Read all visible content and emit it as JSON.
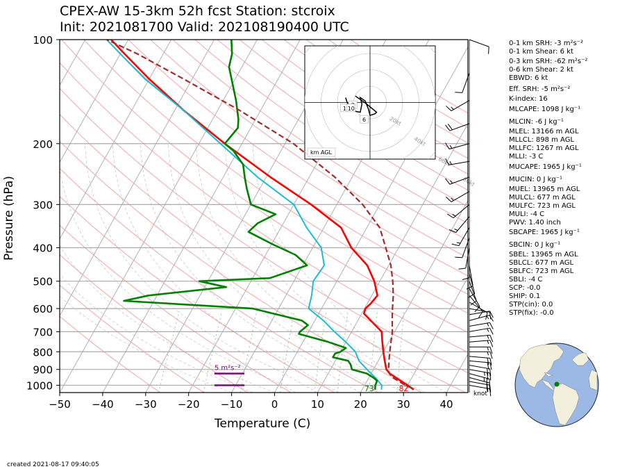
{
  "title_line1": "CPEX-AW 15-3km  52h fcst  Station: stcroix",
  "title_line2": "Init: 2021081700  Valid: 202108190400 UTC",
  "created": "created 2021-08-17 09:40:05",
  "chart_data": {
    "type": "line",
    "subtype": "skew-T log-p",
    "xlabel": "Temperature (C)",
    "ylabel": "Pressure (hPa)",
    "xlim": [
      -50,
      45
    ],
    "ylim": [
      1050,
      100
    ],
    "y_scale": "log",
    "x_ticks": [
      -50,
      -40,
      -30,
      -20,
      -10,
      0,
      10,
      20,
      30,
      40
    ],
    "x_tick_labels": [
      "−50",
      "−40",
      "−30",
      "−20",
      "−10",
      "0",
      "10",
      "20",
      "30",
      "40"
    ],
    "y_ticks": [
      100,
      200,
      300,
      400,
      500,
      600,
      700,
      800,
      900,
      1000
    ],
    "grid": true,
    "wind_unit_label": "knot",
    "surface_labels": {
      "dewpoint": "73",
      "temperature": "82"
    },
    "srh_label": "5 m²s⁻²",
    "colors": {
      "temperature": "#ff0000",
      "dewpoint": "#008000",
      "wetbulb": "#17becf",
      "parcel": "#a52a2a",
      "srh_layer": "#800080",
      "dry_adiabats": "#f4a6a6",
      "isotherms": "#b0b0b0",
      "mixing_ratio": "#8fcf8f"
    },
    "series": [
      {
        "key": "temperature",
        "points": [
          [
            1030,
            32
          ],
          [
            1000,
            30
          ],
          [
            960,
            27
          ],
          [
            925,
            24.3
          ],
          [
            900,
            23
          ],
          [
            850,
            21.5
          ],
          [
            800,
            20
          ],
          [
            750,
            18.5
          ],
          [
            700,
            17
          ],
          [
            650,
            13
          ],
          [
            620,
            10.5
          ],
          [
            600,
            10.2
          ],
          [
            580,
            10.8
          ],
          [
            550,
            11.3
          ],
          [
            500,
            8.7
          ],
          [
            450,
            5
          ],
          [
            400,
            -1
          ],
          [
            350,
            -6
          ],
          [
            300,
            -16
          ],
          [
            250,
            -29
          ],
          [
            200,
            -44
          ],
          [
            160,
            -58
          ],
          [
            130,
            -70
          ],
          [
            110,
            -79
          ],
          [
            100,
            -84
          ]
        ]
      },
      {
        "key": "wetbulb",
        "points": [
          [
            1030,
            24.5
          ],
          [
            1000,
            24
          ],
          [
            960,
            22
          ],
          [
            925,
            20
          ],
          [
            900,
            18.5
          ],
          [
            850,
            15.5
          ],
          [
            800,
            13.5
          ],
          [
            750,
            10
          ],
          [
            700,
            6
          ],
          [
            650,
            2
          ],
          [
            600,
            -3
          ],
          [
            550,
            -4
          ],
          [
            500,
            -5.5
          ],
          [
            450,
            -5
          ],
          [
            400,
            -8
          ],
          [
            350,
            -14
          ],
          [
            300,
            -20
          ],
          [
            250,
            -32
          ],
          [
            200,
            -45
          ],
          [
            160,
            -58
          ],
          [
            130,
            -71
          ],
          [
            110,
            -80
          ],
          [
            100,
            -85
          ]
        ]
      },
      {
        "key": "dewpoint",
        "points": [
          [
            1030,
            23
          ],
          [
            1000,
            22.5
          ],
          [
            970,
            22.3
          ],
          [
            950,
            21
          ],
          [
            925,
            19
          ],
          [
            900,
            15
          ],
          [
            870,
            14
          ],
          [
            850,
            13
          ],
          [
            830,
            9
          ],
          [
            810,
            9
          ],
          [
            800,
            10
          ],
          [
            780,
            10.8
          ],
          [
            750,
            6
          ],
          [
            710,
            -2
          ],
          [
            700,
            -2
          ],
          [
            670,
            -1
          ],
          [
            650,
            -3
          ],
          [
            600,
            -16
          ],
          [
            570,
            -47
          ],
          [
            550,
            -42
          ],
          [
            520,
            -25
          ],
          [
            500,
            -32
          ],
          [
            490,
            -16
          ],
          [
            450,
            -9
          ],
          [
            420,
            -13
          ],
          [
            390,
            -20
          ],
          [
            360,
            -27
          ],
          [
            340,
            -26
          ],
          [
            320,
            -23
          ],
          [
            300,
            -30
          ],
          [
            270,
            -33
          ],
          [
            250,
            -35
          ],
          [
            230,
            -37
          ],
          [
            210,
            -41
          ],
          [
            200,
            -44
          ],
          [
            180,
            -43
          ],
          [
            170,
            -44
          ],
          [
            150,
            -47
          ],
          [
            120,
            -53
          ],
          [
            110,
            -54
          ],
          [
            100,
            -56
          ]
        ]
      },
      {
        "key": "parcel",
        "points": [
          [
            1020,
            31.5
          ],
          [
            1000,
            29.5
          ],
          [
            950,
            25.5
          ],
          [
            920,
            24
          ],
          [
            900,
            23.5
          ],
          [
            850,
            22.5
          ],
          [
            800,
            21.5
          ],
          [
            750,
            20.5
          ],
          [
            700,
            19.5
          ],
          [
            650,
            18
          ],
          [
            600,
            16.5
          ],
          [
            550,
            15
          ],
          [
            500,
            13
          ],
          [
            450,
            10.5
          ],
          [
            400,
            7
          ],
          [
            350,
            3
          ],
          [
            300,
            -4
          ],
          [
            250,
            -14
          ],
          [
            200,
            -28
          ],
          [
            160,
            -45
          ],
          [
            130,
            -62
          ],
          [
            110,
            -76
          ],
          [
            100,
            -85
          ]
        ]
      }
    ],
    "srh_layers": [
      {
        "p_bottom": 1000,
        "p_top": 1000,
        "t_start": -14,
        "t_end": -7
      },
      {
        "p_bottom": 925,
        "p_top": 925,
        "t_start": -14,
        "t_end": -7
      }
    ],
    "hodograph": {
      "label": "km AGL",
      "ring_labels": [
        "20kt",
        "40kt",
        "60kt",
        "80kt"
      ],
      "height_labels": [
        "1",
        "3",
        "6",
        "10"
      ],
      "xlim": [
        -40,
        40
      ],
      "ylim": [
        -35,
        35
      ],
      "ring_step_kt": 10,
      "ring_count": 9,
      "trace": [
        [
          -15,
          3
        ],
        [
          -14,
          0
        ],
        [
          -13,
          -2
        ],
        [
          -12,
          -5
        ],
        [
          -6,
          -6
        ],
        [
          -5,
          -1
        ],
        [
          -6,
          3
        ],
        [
          -3,
          1
        ],
        [
          -1,
          -4
        ],
        [
          0,
          -8
        ],
        [
          3,
          -7
        ],
        [
          4,
          -6
        ],
        [
          -2,
          -1
        ],
        [
          -9,
          4
        ]
      ],
      "label_points": [
        [
          -16,
          -4
        ],
        [
          -11,
          -2
        ],
        [
          -4,
          -11
        ],
        [
          -12,
          -4
        ]
      ]
    },
    "wind_barbs": {
      "pressures": [
        1000,
        975,
        950,
        925,
        900,
        875,
        850,
        825,
        800,
        775,
        750,
        725,
        700,
        675,
        650,
        625,
        600,
        575,
        550,
        525,
        500,
        475,
        450,
        425,
        400,
        375,
        350,
        325,
        300,
        275,
        250,
        225,
        200,
        175,
        150,
        125,
        100
      ],
      "from_deg": [
        100,
        100,
        105,
        105,
        100,
        100,
        95,
        95,
        90,
        90,
        85,
        85,
        80,
        80,
        75,
        80,
        100,
        120,
        140,
        150,
        160,
        165,
        170,
        180,
        190,
        200,
        210,
        220,
        230,
        240,
        250,
        260,
        255,
        250,
        240,
        200,
        110
      ],
      "speed_kt": [
        15,
        20,
        20,
        25,
        25,
        20,
        20,
        20,
        15,
        15,
        15,
        15,
        15,
        15,
        15,
        10,
        10,
        10,
        10,
        10,
        10,
        10,
        10,
        10,
        10,
        10,
        15,
        15,
        15,
        15,
        15,
        15,
        15,
        20,
        15,
        10,
        10
      ]
    }
  },
  "indices": [
    "0-1 km SRH: -3 m²s⁻²",
    "0-1 km Shear: 6 kt",
    "0-3 km SRH: -62 m²s⁻²",
    "0-6 km Shear: 2 kt",
    "EBWD: 6 kt",
    "Eff. SRH: -5 m²s⁻²",
    "K-index: 16",
    "MLCAPE: 1098 J kg⁻¹",
    "MLCIN: -6 J kg⁻¹",
    "MLEL: 13166 m AGL",
    "MLLCL: 898 m AGL",
    "MLLFC: 1267 m AGL",
    "MLLI: -3 C",
    "MUCAPE: 1965 J kg⁻¹",
    "MUCIN: 0 J kg⁻¹",
    "MUEL: 13965 m AGL",
    "MULCL: 677 m AGL",
    "MULFC: 723 m AGL",
    "MULI: -4 C",
    "PWV: 1.40 inch",
    "SBCAPE: 1965 J kg⁻¹",
    "SBCIN: 0 J kg⁻¹",
    "SBEL: 13965 m AGL",
    "SBLCL: 677 m AGL",
    "SBLFC: 723 m AGL",
    "SBLI: -4 C",
    "SCP: -0.0",
    "SHIP: 0.1",
    "STP(cin): 0.0",
    "STP(fix): -0.0"
  ],
  "globe": {
    "ocean_color": "#9bb9e4",
    "land_color": "#f2efdc",
    "marker_color": "#008000"
  }
}
